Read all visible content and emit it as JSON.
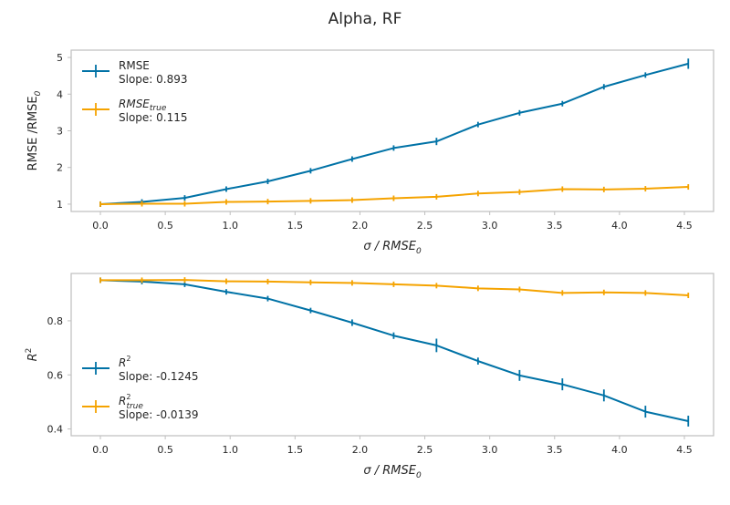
{
  "title": "Alpha, RF",
  "colors": {
    "series1": "#0072a6",
    "series2": "#f5a300",
    "spine": "#bfbfbf"
  },
  "chart_data": [
    {
      "type": "line",
      "xlabel_main": "σ / RMSE",
      "xlabel_sub": "0",
      "ylabel_main": "RMSE /RMSE",
      "ylabel_sub": "0",
      "xlim": [
        -0.225,
        4.725
      ],
      "ylim": [
        0.8,
        5.2
      ],
      "xticks": [
        0.0,
        0.5,
        1.0,
        1.5,
        2.0,
        2.5,
        3.0,
        3.5,
        4.0,
        4.5
      ],
      "xtick_labels": [
        "0.0",
        "0.5",
        "1.0",
        "1.5",
        "2.0",
        "2.5",
        "3.0",
        "3.5",
        "4.0",
        "4.5"
      ],
      "yticks": [
        1,
        2,
        3,
        4,
        5
      ],
      "ytick_labels": [
        "1",
        "2",
        "3",
        "4",
        "5"
      ],
      "legend_position": "upper-left",
      "x": [
        0.0,
        0.32,
        0.65,
        0.97,
        1.29,
        1.62,
        1.94,
        2.26,
        2.59,
        2.91,
        3.23,
        3.56,
        3.88,
        4.2,
        4.53
      ],
      "series": [
        {
          "name_main": "RMSE",
          "name_sub": "",
          "slope_text": "Slope: 0.893",
          "values": [
            1.0,
            1.06,
            1.17,
            1.41,
            1.62,
            1.91,
            2.23,
            2.53,
            2.71,
            3.17,
            3.49,
            3.74,
            4.2,
            4.52,
            4.83
          ],
          "errors": [
            0.01,
            0.01,
            0.03,
            0.03,
            0.03,
            0.04,
            0.06,
            0.06,
            0.1,
            0.06,
            0.05,
            0.06,
            0.07,
            0.06,
            0.14
          ]
        },
        {
          "name_main": "RMSE",
          "name_sub": "true",
          "slope_text": "Slope: 0.115",
          "values": [
            1.0,
            1.01,
            1.01,
            1.06,
            1.07,
            1.09,
            1.11,
            1.16,
            1.2,
            1.29,
            1.33,
            1.41,
            1.4,
            1.42,
            1.47
          ],
          "errors": [
            0.01,
            0.01,
            0.01,
            0.01,
            0.01,
            0.01,
            0.01,
            0.02,
            0.03,
            0.02,
            0.02,
            0.05,
            0.06,
            0.03,
            0.05
          ]
        }
      ]
    },
    {
      "type": "line",
      "xlabel_main": "σ / RMSE",
      "xlabel_sub": "0",
      "ylabel_main": "R",
      "ylabel_sup": "2",
      "xlim": [
        -0.225,
        4.725
      ],
      "ylim": [
        0.375,
        0.975
      ],
      "xticks": [
        0.0,
        0.5,
        1.0,
        1.5,
        2.0,
        2.5,
        3.0,
        3.5,
        4.0,
        4.5
      ],
      "xtick_labels": [
        "0.0",
        "0.5",
        "1.0",
        "1.5",
        "2.0",
        "2.5",
        "3.0",
        "3.5",
        "4.0",
        "4.5"
      ],
      "yticks": [
        0.4,
        0.6,
        0.8
      ],
      "ytick_labels": [
        "0.4",
        "0.6",
        "0.8"
      ],
      "legend_position": "center-left",
      "x": [
        0.0,
        0.32,
        0.65,
        0.97,
        1.29,
        1.62,
        1.94,
        2.26,
        2.59,
        2.91,
        3.23,
        3.56,
        3.88,
        4.2,
        4.53
      ],
      "series": [
        {
          "name_main": "R",
          "name_sup": "2",
          "name_sub": "",
          "slope_text": "Slope: -0.1245",
          "values": [
            0.95,
            0.945,
            0.935,
            0.907,
            0.882,
            0.838,
            0.793,
            0.745,
            0.709,
            0.651,
            0.598,
            0.565,
            0.524,
            0.464,
            0.429
          ],
          "errors": [
            0.002,
            0.003,
            0.005,
            0.006,
            0.005,
            0.008,
            0.012,
            0.012,
            0.025,
            0.013,
            0.02,
            0.022,
            0.022,
            0.022,
            0.02
          ]
        },
        {
          "name_main": "R",
          "name_sup": "2",
          "name_sub": "true",
          "slope_text": "Slope: -0.0139",
          "values": [
            0.95,
            0.95,
            0.951,
            0.946,
            0.945,
            0.942,
            0.94,
            0.935,
            0.93,
            0.92,
            0.916,
            0.903,
            0.905,
            0.903,
            0.894
          ],
          "errors": [
            0.001,
            0.001,
            0.001,
            0.002,
            0.002,
            0.002,
            0.002,
            0.003,
            0.004,
            0.003,
            0.003,
            0.008,
            0.01,
            0.004,
            0.01
          ]
        }
      ]
    }
  ]
}
